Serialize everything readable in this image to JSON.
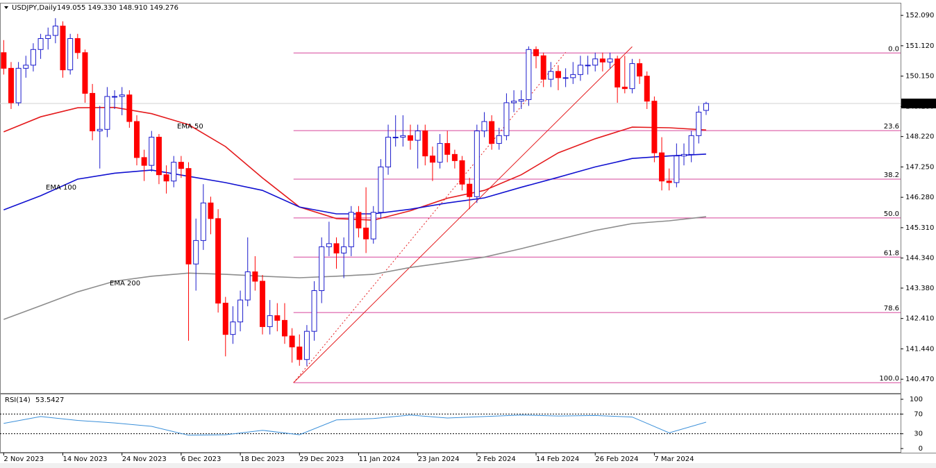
{
  "chart_data": {
    "type": "candlestick",
    "title": "USDJPY,Daily",
    "header_values": "149.055 149.330 148.910 149.276",
    "categories": [
      "2 Nov 2023",
      null,
      null,
      null,
      null,
      null,
      null,
      null,
      "14 Nov 2023",
      null,
      null,
      null,
      null,
      null,
      null,
      null,
      "24 Nov 2023",
      null,
      null,
      null,
      null,
      null,
      null,
      null,
      "6 Dec 2023",
      null,
      null,
      null,
      null,
      null,
      null,
      null,
      "18 Dec 2023",
      null,
      null,
      null,
      null,
      null,
      null,
      null,
      "29 Dec 2023",
      null,
      null,
      null,
      null,
      null,
      null,
      null,
      "11 Jan 2024",
      null,
      null,
      null,
      null,
      null,
      null,
      null,
      "23 Jan 2024",
      null,
      null,
      null,
      null,
      null,
      null,
      null,
      "2 Feb 2024",
      null,
      null,
      null,
      null,
      null,
      null,
      null,
      "14 Feb 2024",
      null,
      null,
      null,
      null,
      null,
      null,
      null,
      "26 Feb 2024",
      null,
      null,
      null,
      null,
      null,
      null,
      null,
      "7 Mar 2024",
      null,
      null,
      null,
      null,
      null,
      null,
      null
    ],
    "open": [
      150.9,
      150.4,
      149.3,
      150.4,
      150.5,
      151.0,
      151.35,
      151.45,
      151.75,
      150.35,
      151.35,
      150.9,
      149.6,
      148.4,
      148.45,
      149.5,
      149.5,
      149.55,
      148.7,
      147.55,
      147.3,
      148.2,
      147.0,
      146.8,
      147.4,
      147.2,
      144.15,
      144.9,
      146.1,
      145.6,
      142.9,
      141.9,
      142.3,
      143.0,
      143.9,
      143.6,
      142.15,
      142.5,
      142.35,
      141.85,
      141.5,
      141.1,
      142.0,
      143.3,
      144.7,
      144.8,
      144.5,
      144.7,
      145.8,
      145.3,
      144.95,
      145.8,
      147.25,
      148.2,
      148.2,
      148.25,
      148.1,
      148.4,
      147.6,
      147.4,
      148.0,
      147.65,
      147.45,
      146.7,
      146.3,
      148.4,
      148.7,
      148.0,
      148.25,
      149.3,
      149.35,
      149.4,
      151.0,
      150.8,
      150.05,
      150.3,
      150.1,
      150.1,
      150.2,
      150.5,
      150.5,
      150.7,
      150.6,
      150.7,
      149.8,
      149.75,
      150.55,
      150.15,
      149.35,
      147.7,
      146.8,
      146.75,
      147.6,
      147.65,
      148.25,
      149.055
    ],
    "high": [
      151.3,
      150.6,
      150.6,
      150.8,
      151.2,
      151.5,
      151.7,
      152.0,
      151.9,
      151.5,
      151.5,
      151.0,
      149.9,
      149.2,
      149.8,
      149.7,
      149.8,
      149.7,
      148.9,
      147.8,
      148.4,
      148.3,
      147.3,
      147.6,
      147.6,
      147.4,
      145.6,
      146.7,
      146.3,
      145.9,
      143.1,
      142.8,
      143.3,
      145.0,
      144.4,
      143.8,
      143.0,
      142.9,
      142.9,
      142.1,
      141.9,
      142.2,
      143.6,
      145.0,
      145.5,
      145.0,
      145.0,
      146.0,
      146.0,
      146.6,
      146.0,
      147.5,
      148.6,
      148.9,
      148.9,
      148.6,
      148.6,
      148.6,
      147.9,
      148.3,
      148.4,
      147.8,
      147.6,
      146.9,
      148.6,
      149.0,
      148.9,
      148.5,
      149.6,
      149.7,
      149.7,
      151.1,
      151.1,
      150.9,
      150.6,
      150.5,
      150.4,
      150.6,
      150.8,
      150.8,
      150.9,
      150.9,
      150.9,
      150.8,
      150.8,
      150.7,
      150.7,
      150.3,
      149.5,
      148.2,
      147.2,
      148.0,
      148.0,
      148.4,
      149.2,
      149.33
    ],
    "low": [
      150.2,
      149.1,
      149.2,
      150.1,
      150.3,
      150.7,
      151.0,
      151.2,
      150.1,
      150.2,
      150.7,
      149.3,
      148.1,
      147.2,
      148.2,
      149.1,
      148.9,
      148.5,
      147.3,
      146.8,
      147.1,
      146.7,
      146.4,
      146.6,
      146.9,
      141.7,
      143.3,
      144.6,
      145.1,
      142.6,
      141.2,
      141.6,
      142.0,
      142.8,
      143.3,
      141.9,
      141.9,
      142.0,
      141.6,
      141.0,
      140.9,
      140.9,
      141.7,
      142.9,
      144.4,
      144.0,
      143.7,
      144.4,
      145.0,
      144.5,
      144.8,
      145.6,
      147.0,
      147.9,
      147.9,
      147.8,
      147.2,
      147.3,
      146.8,
      147.2,
      147.4,
      147.2,
      146.5,
      145.9,
      146.1,
      148.2,
      147.8,
      147.8,
      148.1,
      149.0,
      149.1,
      149.2,
      150.4,
      149.8,
      149.8,
      149.7,
      149.8,
      149.9,
      150.0,
      150.2,
      150.3,
      150.3,
      150.4,
      149.3,
      149.6,
      149.6,
      149.9,
      149.1,
      147.4,
      146.5,
      146.5,
      146.6,
      147.3,
      147.4,
      148.0,
      148.91
    ],
    "close": [
      150.4,
      149.3,
      150.4,
      150.5,
      151.0,
      151.35,
      151.45,
      151.75,
      150.35,
      151.35,
      150.9,
      149.6,
      148.4,
      148.45,
      149.5,
      149.5,
      149.55,
      148.7,
      147.55,
      147.3,
      148.2,
      147.0,
      146.8,
      147.4,
      147.2,
      144.15,
      144.9,
      146.1,
      145.6,
      142.9,
      141.9,
      142.3,
      143.0,
      143.9,
      143.6,
      142.15,
      142.5,
      142.35,
      141.85,
      141.5,
      141.1,
      142.0,
      143.3,
      144.7,
      144.8,
      144.5,
      144.7,
      145.8,
      145.3,
      144.95,
      145.8,
      147.25,
      148.2,
      148.2,
      148.25,
      148.1,
      148.4,
      147.6,
      147.4,
      148.0,
      147.65,
      147.45,
      146.7,
      146.3,
      148.4,
      148.7,
      148.0,
      148.25,
      149.3,
      149.35,
      149.4,
      151.0,
      150.8,
      150.05,
      150.3,
      150.1,
      150.1,
      150.2,
      150.5,
      150.5,
      150.7,
      150.6,
      150.7,
      149.8,
      149.75,
      150.55,
      150.15,
      149.35,
      147.7,
      146.8,
      146.75,
      147.6,
      147.65,
      148.25,
      149.0,
      149.276
    ],
    "up_color": "#1a1acc",
    "down_color": "#ff0000",
    "xlim": [
      -0.5,
      121.3
    ],
    "ylim": [
      140.03,
      152.47
    ],
    "yticks": [
      {
        "value": 152.09,
        "label": "152.090"
      },
      {
        "value": 151.12,
        "label": "151.120"
      },
      {
        "value": 150.15,
        "label": "150.150"
      },
      {
        "value": 149.18,
        "label": "149.180"
      },
      {
        "value": 148.22,
        "label": "148.220"
      },
      {
        "value": 147.25,
        "label": "147.250"
      },
      {
        "value": 146.28,
        "label": "146.280"
      },
      {
        "value": 145.31,
        "label": "145.310"
      },
      {
        "value": 144.34,
        "label": "144.340"
      },
      {
        "value": 143.38,
        "label": "143.380"
      },
      {
        "value": 142.41,
        "label": "142.410"
      },
      {
        "value": 141.44,
        "label": "141.440"
      },
      {
        "value": 140.47,
        "label": "140.470"
      }
    ],
    "ema": [
      {
        "name": "EMA 50",
        "color": "#e41a1c",
        "x": [
          0,
          5,
          10,
          15,
          20,
          25,
          30,
          35,
          40,
          45,
          50,
          55,
          60,
          65,
          70,
          75,
          80,
          85,
          90,
          95
        ],
        "values": [
          148.37,
          148.85,
          149.14,
          149.15,
          148.95,
          148.6,
          147.9,
          146.9,
          145.97,
          145.6,
          145.55,
          145.85,
          146.25,
          146.5,
          147.0,
          147.7,
          148.15,
          148.52,
          148.5,
          148.43
        ]
      },
      {
        "name": "EMA 100",
        "color": "#1010d0",
        "x": [
          0,
          5,
          10,
          15,
          20,
          25,
          30,
          35,
          40,
          45,
          50,
          55,
          60,
          65,
          70,
          75,
          80,
          85,
          90,
          95
        ],
        "values": [
          145.88,
          146.33,
          146.86,
          147.05,
          147.15,
          146.95,
          146.75,
          146.5,
          145.97,
          145.75,
          145.75,
          145.9,
          146.1,
          146.26,
          146.6,
          146.92,
          147.25,
          147.52,
          147.6,
          147.66
        ]
      },
      {
        "name": "EMA 200",
        "color": "#8c8c8c",
        "x": [
          0,
          5,
          10,
          15,
          20,
          25,
          30,
          35,
          40,
          45,
          50,
          55,
          60,
          65,
          70,
          75,
          80,
          85,
          90,
          95
        ],
        "values": [
          142.38,
          142.82,
          143.26,
          143.6,
          143.76,
          143.86,
          143.82,
          143.76,
          143.71,
          143.76,
          143.82,
          144.04,
          144.2,
          144.37,
          144.64,
          144.93,
          145.22,
          145.44,
          145.53,
          145.66
        ]
      }
    ],
    "fib": {
      "color": "#d6449a",
      "levels": [
        {
          "value": 150.89,
          "label": "0.0"
        },
        {
          "value": 148.41,
          "label": "23.6"
        },
        {
          "value": 146.86,
          "label": "38.2"
        },
        {
          "value": 145.62,
          "label": "50.0"
        },
        {
          "value": 144.37,
          "label": "61.8"
        },
        {
          "value": 142.6,
          "label": "78.6"
        },
        {
          "value": 140.36,
          "label": "100.0"
        }
      ]
    },
    "trendlines": [
      {
        "style": "solid",
        "color": "#e41a1c",
        "x": [
          39.2,
          85
        ],
        "values": [
          140.36,
          151.09
        ]
      },
      {
        "style": "dashed",
        "color": "#e41a1c",
        "x": [
          39.2,
          76
        ],
        "values": [
          140.36,
          150.91
        ]
      }
    ],
    "rsi": {
      "title": "RSI(14)",
      "color": "#3a8fd9",
      "x": [
        0,
        5,
        10,
        15,
        20,
        25,
        30,
        35,
        40,
        45,
        50,
        55,
        60,
        65,
        70,
        75,
        80,
        85,
        90,
        95
      ],
      "values": [
        51,
        65,
        57,
        52,
        45,
        27,
        28,
        37,
        28,
        58,
        61,
        68,
        62,
        65,
        68,
        66,
        67,
        64,
        32,
        53.5427
      ],
      "ylim": [
        -8.5,
        109.9
      ],
      "yticks": [
        100,
        70,
        30,
        0
      ],
      "levels": [
        70,
        30
      ]
    }
  }
}
